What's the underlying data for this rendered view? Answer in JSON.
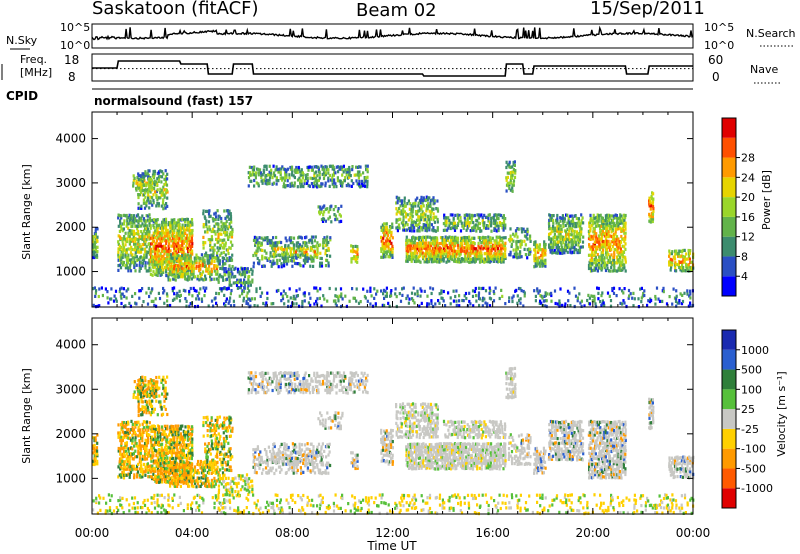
{
  "header": {
    "title": "Saskatoon (fitACF)",
    "beam": "Beam 02",
    "date": "15/Sep/2011"
  },
  "colors": {
    "power": [
      "#0000ff",
      "#2a4fc4",
      "#3c8c6e",
      "#62b34a",
      "#9ad62a",
      "#e6d400",
      "#ff9a00",
      "#ff5000",
      "#e00000"
    ],
    "velocity": [
      "#1a2ab0",
      "#2a5fd0",
      "#2f7f3a",
      "#56c03a",
      "#c8c8c4",
      "#ffd000",
      "#ff9a00",
      "#ff5a00",
      "#e00000"
    ]
  },
  "chart_data": [
    {
      "type": "line",
      "panel": "noise",
      "left_label": "N.Sky",
      "right_label": "N.Search",
      "left_ticks": [
        "10^5",
        "10^0"
      ],
      "right_ticks": [
        "10^5",
        "10^0"
      ],
      "xlim": [
        0,
        24
      ]
    },
    {
      "type": "line",
      "panel": "frequency",
      "left_label_1": "Freq.",
      "left_label_2": "[MHz]",
      "right_label": "Nave",
      "left_ticks": [
        18,
        8
      ],
      "right_ticks": [
        60,
        0
      ],
      "xlim": [
        0,
        24
      ],
      "freq_steps": [
        [
          0,
          13
        ],
        [
          1.0,
          13
        ],
        [
          1.05,
          16.5
        ],
        [
          3.5,
          16.5
        ],
        [
          3.55,
          15
        ],
        [
          4.6,
          15
        ],
        [
          4.65,
          10
        ],
        [
          5.6,
          10
        ],
        [
          5.65,
          15
        ],
        [
          6.4,
          15
        ],
        [
          6.45,
          10
        ],
        [
          13.2,
          10
        ],
        [
          13.25,
          9
        ],
        [
          16.5,
          9
        ],
        [
          16.55,
          15
        ],
        [
          17.2,
          15
        ],
        [
          17.25,
          10
        ],
        [
          17.6,
          10
        ],
        [
          17.65,
          14
        ],
        [
          21.3,
          14
        ],
        [
          21.35,
          10
        ],
        [
          22.2,
          10
        ],
        [
          22.25,
          14
        ],
        [
          24,
          14
        ]
      ],
      "nave_level": 28
    },
    {
      "type": "heatmap",
      "panel": "cpid",
      "label": "CPID",
      "program": "normalsound (fast) 157"
    },
    {
      "type": "heatmap",
      "panel": "power",
      "ylabel": "Slant Range [km]",
      "yticks": [
        1000,
        2000,
        3000,
        4000
      ],
      "ylim": [
        200,
        4600
      ],
      "xlim": [
        0,
        24
      ],
      "colorbar_label": "Power [dB]",
      "colorbar_ticks": [
        4,
        8,
        12,
        16,
        20,
        24,
        28
      ]
    },
    {
      "type": "heatmap",
      "panel": "velocity",
      "ylabel": "Slant Range [km]",
      "yticks": [
        1000,
        2000,
        3000,
        4000
      ],
      "ylim": [
        200,
        4600
      ],
      "xlim": [
        0,
        24
      ],
      "xlabel": "Time UT",
      "xticks": [
        "00:00",
        "04:00",
        "08:00",
        "12:00",
        "16:00",
        "20:00",
        "00:00"
      ],
      "colorbar_label": "Velocity [m s⁻¹]",
      "colorbar_ticks": [
        "1000",
        "500",
        "100",
        "25",
        "-25",
        "-100",
        "-500",
        "-1000"
      ]
    }
  ]
}
